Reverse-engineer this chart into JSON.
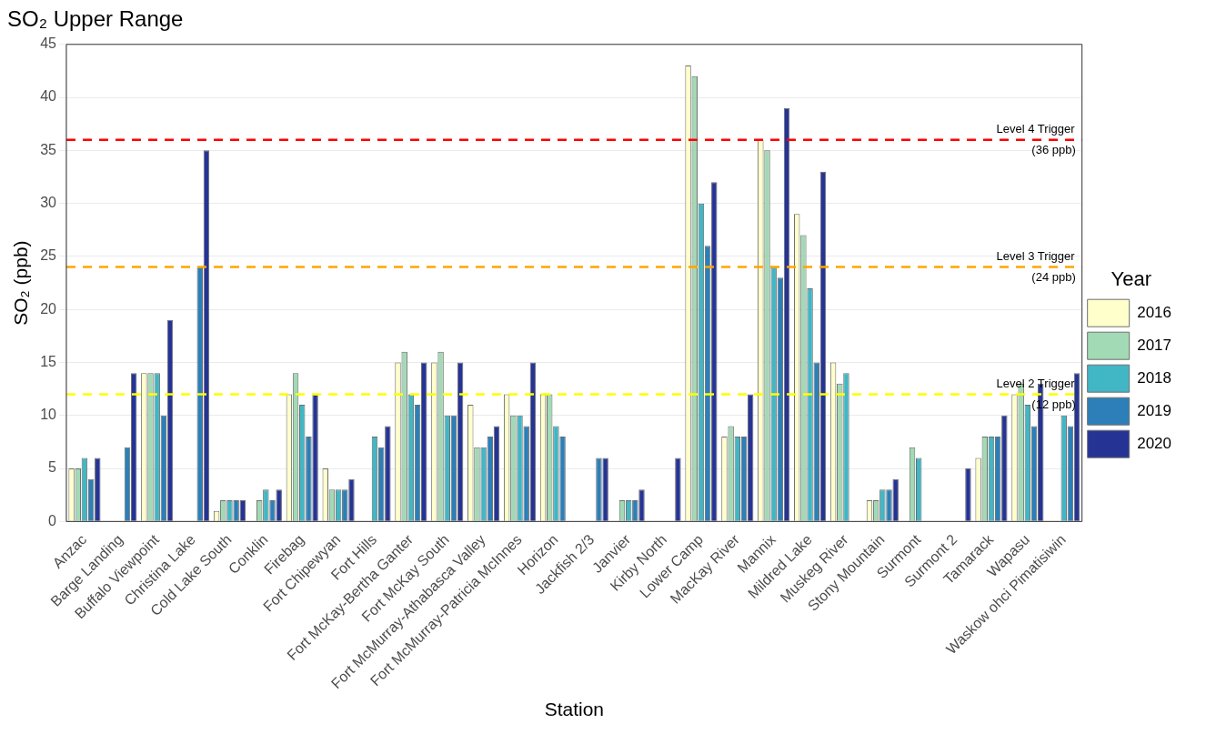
{
  "chart_data": {
    "type": "bar",
    "title": "SO₂ Upper Range",
    "xlabel": "Station",
    "ylabel": "SO₂ (ppb)",
    "legend_title": "Year",
    "legend": "right",
    "grid": "y",
    "categories": [
      "Anzac",
      "Barge Landing",
      "Buffalo Viewpoint",
      "Christina Lake",
      "Cold Lake South",
      "Conklin",
      "Firebag",
      "Fort Chipewyan",
      "Fort Hills",
      "Fort McKay-Bertha Ganter",
      "Fort McKay South",
      "Fort McMurray-Athabasca Valley",
      "Fort McMurray-Patricia McInnes",
      "Horizon",
      "Jackfish 2/3",
      "Janvier",
      "Kirby North",
      "Lower Camp",
      "MacKay River",
      "Mannix",
      "Mildred Lake",
      "Muskeg River",
      "Stony Mountain",
      "Surmont",
      "Surmont 2",
      "Tamarack",
      "Wapasu",
      "Waskow ohci Pimatisiwin"
    ],
    "series": [
      {
        "name": "2016",
        "color": "#ffffcc",
        "values": [
          5,
          null,
          14,
          null,
          1,
          null,
          12,
          5,
          null,
          15,
          15,
          11,
          12,
          12,
          null,
          null,
          null,
          43,
          8,
          36,
          29,
          15,
          2,
          null,
          null,
          6,
          12,
          null
        ]
      },
      {
        "name": "2017",
        "color": "#a1dab4",
        "values": [
          5,
          null,
          14,
          null,
          2,
          2,
          14,
          3,
          null,
          16,
          16,
          7,
          10,
          12,
          null,
          2,
          null,
          42,
          9,
          35,
          27,
          13,
          2,
          7,
          null,
          8,
          13,
          null
        ]
      },
      {
        "name": "2018",
        "color": "#41b6c4",
        "values": [
          6,
          null,
          14,
          null,
          2,
          3,
          11,
          3,
          8,
          12,
          10,
          7,
          10,
          9,
          null,
          2,
          null,
          30,
          8,
          24,
          22,
          14,
          3,
          6,
          null,
          8,
          11,
          10
        ]
      },
      {
        "name": "2019",
        "color": "#2c7fb8",
        "values": [
          4,
          7,
          10,
          24,
          2,
          2,
          8,
          3,
          7,
          11,
          10,
          8,
          9,
          8,
          6,
          2,
          null,
          26,
          8,
          23,
          15,
          null,
          3,
          null,
          null,
          8,
          9,
          9
        ]
      },
      {
        "name": "2020",
        "color": "#253494",
        "values": [
          6,
          14,
          19,
          35,
          2,
          3,
          12,
          4,
          9,
          15,
          15,
          9,
          15,
          null,
          6,
          3,
          6,
          32,
          12,
          39,
          33,
          null,
          4,
          null,
          5,
          10,
          13,
          14
        ]
      }
    ],
    "ylim": [
      0,
      45
    ],
    "yticks": [
      0,
      5,
      10,
      15,
      20,
      25,
      30,
      35,
      40,
      45
    ],
    "ref_lines": [
      {
        "axis": "y",
        "value": 36,
        "label": "Level 4 Trigger\n(36 ppb)",
        "color": "#ff0000",
        "line_style": "dashed"
      },
      {
        "axis": "y",
        "value": 24,
        "label": "Level 3 Trigger\n(24 ppb)",
        "color": "#ffa500",
        "line_style": "dashed"
      },
      {
        "axis": "y",
        "value": 12,
        "label": "Level 2 Trigger\n(12 ppb)",
        "color": "#ffff00",
        "line_style": "dashed"
      }
    ]
  }
}
